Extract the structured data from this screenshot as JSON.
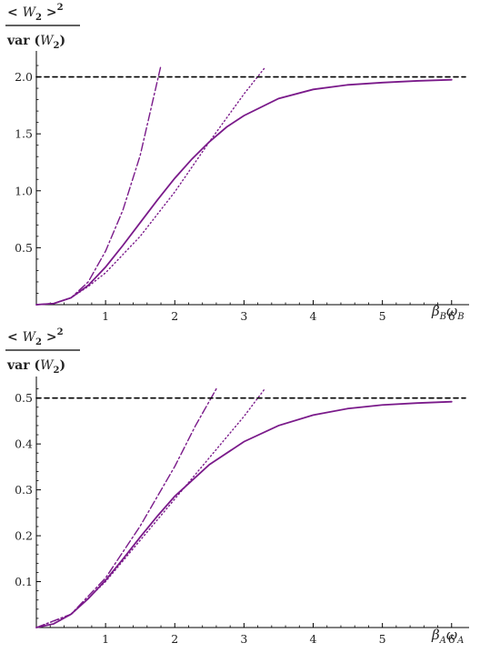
{
  "colors": {
    "curve": "#7a1a8a",
    "axis": "#000000",
    "reference": "#000000"
  },
  "chart_data": [
    {
      "type": "line",
      "ylabel": {
        "num_prefix": "< ",
        "num_var": "W",
        "num_sub": "2",
        "num_suffix": " >",
        "num_sup": "2",
        "den_prefix": "var (",
        "den_var": "W",
        "den_sub": "2",
        "den_suffix": ")"
      },
      "xlabel": {
        "var1": "β",
        "sub1": "B",
        "var2": "ω",
        "sub2": "B"
      },
      "xlim": [
        0,
        6.2
      ],
      "ylim": [
        0,
        2.18
      ],
      "xticks": [
        1,
        2,
        3,
        4,
        5,
        6
      ],
      "yticks": [
        0.5,
        1.0,
        1.5,
        2.0
      ],
      "ytick_labels": [
        "0.5",
        "1.0",
        "1.5",
        "2.0"
      ],
      "grid": false,
      "series": [
        {
          "style": "solid",
          "x": [
            0,
            0.25,
            0.5,
            0.75,
            1,
            1.25,
            1.5,
            1.75,
            2,
            2.25,
            2.5,
            2.75,
            3,
            3.5,
            4,
            4.5,
            5,
            5.5,
            6
          ],
          "y": [
            0,
            0.01,
            0.06,
            0.17,
            0.33,
            0.52,
            0.72,
            0.92,
            1.11,
            1.28,
            1.43,
            1.56,
            1.66,
            1.81,
            1.89,
            1.93,
            1.95,
            1.965,
            1.975
          ]
        },
        {
          "style": "dashdot",
          "x": [
            0,
            0.25,
            0.5,
            0.75,
            1,
            1.25,
            1.5,
            1.8
          ],
          "y": [
            0,
            0.01,
            0.06,
            0.2,
            0.47,
            0.83,
            1.31,
            2.1
          ]
        },
        {
          "style": "dotted",
          "x": [
            0,
            0.25,
            0.5,
            0.75,
            1,
            1.5,
            2,
            2.5,
            3,
            3.3
          ],
          "y": [
            0,
            0.01,
            0.06,
            0.16,
            0.28,
            0.6,
            0.99,
            1.43,
            1.85,
            2.08
          ]
        },
        {
          "style": "dashed",
          "x": [
            0,
            6.2
          ],
          "y": [
            2,
            2
          ]
        }
      ]
    },
    {
      "type": "line",
      "ylabel": {
        "num_prefix": "< ",
        "num_var": "W",
        "num_sub": "2",
        "num_suffix": " >",
        "num_sup": "2",
        "den_prefix": "var (",
        "den_var": "W",
        "den_sub": "2",
        "den_suffix": ")"
      },
      "xlabel": {
        "var1": "β",
        "sub1": "A",
        "var2": "ω",
        "sub2": "A"
      },
      "xlim": [
        0,
        6.2
      ],
      "ylim": [
        0,
        0.535
      ],
      "xticks": [
        1,
        2,
        3,
        4,
        5,
        6
      ],
      "yticks": [
        0.1,
        0.2,
        0.3,
        0.4,
        0.5
      ],
      "ytick_labels": [
        "0.1",
        "0.2",
        "0.3",
        "0.4",
        "0.5"
      ],
      "grid": false,
      "series": [
        {
          "style": "solid",
          "x": [
            0,
            0.25,
            0.5,
            0.75,
            1,
            1.25,
            1.5,
            1.75,
            2,
            2.5,
            3,
            3.5,
            4,
            4.5,
            5,
            5.5,
            6
          ],
          "y": [
            0,
            0.008,
            0.029,
            0.063,
            0.103,
            0.149,
            0.197,
            0.243,
            0.286,
            0.355,
            0.405,
            0.44,
            0.463,
            0.477,
            0.485,
            0.489,
            0.492
          ]
        },
        {
          "style": "dashdot",
          "x": [
            0,
            0.5,
            1,
            1.5,
            2,
            2.3,
            2.6
          ],
          "y": [
            0,
            0.029,
            0.108,
            0.221,
            0.351,
            0.44,
            0.52
          ]
        },
        {
          "style": "dotted",
          "x": [
            0,
            0.5,
            1,
            1.5,
            2,
            2.5,
            3,
            3.3
          ],
          "y": [
            0,
            0.028,
            0.1,
            0.19,
            0.28,
            0.37,
            0.46,
            0.52
          ]
        },
        {
          "style": "dashed",
          "x": [
            0,
            6.2
          ],
          "y": [
            0.5,
            0.5
          ]
        }
      ]
    }
  ]
}
